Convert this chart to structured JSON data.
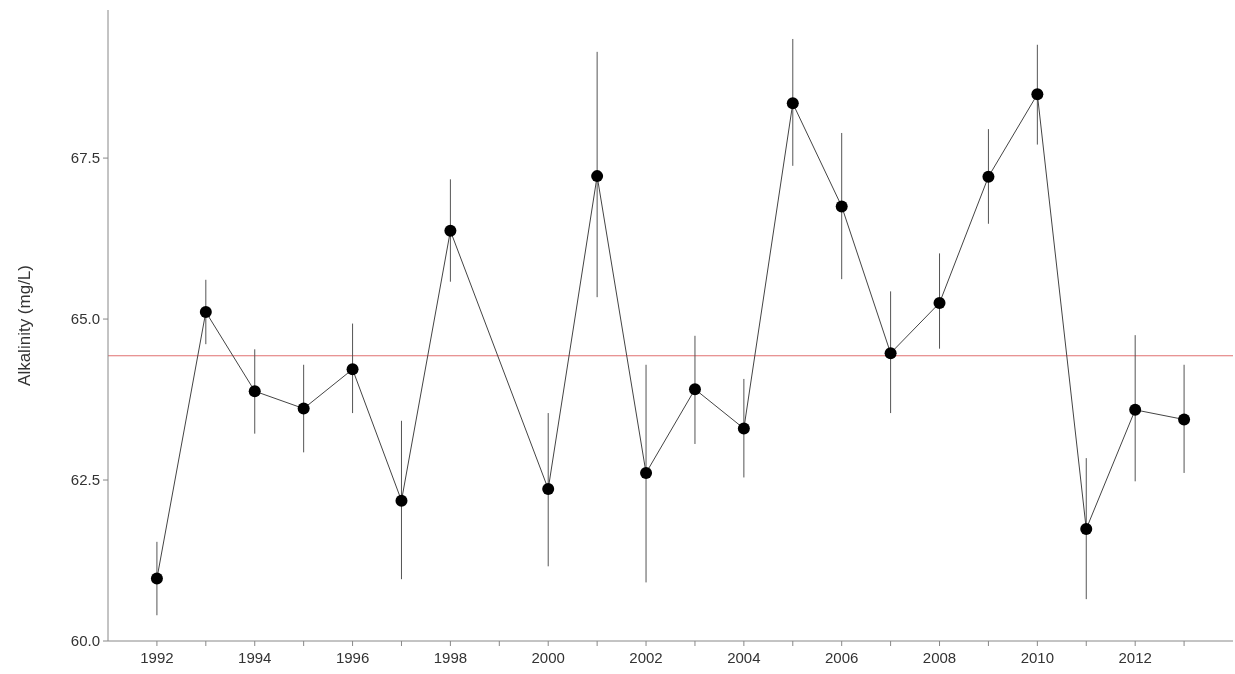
{
  "chart_data": {
    "type": "line",
    "ylabel": "Alkalinity (mg/L)",
    "x": [
      1992,
      1993,
      1994,
      1995,
      1996,
      1997,
      1998,
      2000,
      2001,
      2002,
      2003,
      2004,
      2005,
      2006,
      2007,
      2008,
      2009,
      2010,
      2011,
      2012,
      2013
    ],
    "series": [
      {
        "color": "#000000",
        "values": [
          60.97,
          65.11,
          63.88,
          63.61,
          64.22,
          62.18,
          66.37,
          62.36,
          67.22,
          62.61,
          63.91,
          63.3,
          68.35,
          66.75,
          64.47,
          65.25,
          67.21,
          68.49,
          61.74,
          63.59,
          63.44
        ],
        "errors": [
          [
            60.4,
            61.54
          ],
          [
            64.61,
            65.61
          ],
          [
            63.22,
            64.53
          ],
          [
            62.93,
            64.29
          ],
          [
            63.54,
            64.93
          ],
          [
            60.96,
            63.42
          ],
          [
            65.58,
            67.17
          ],
          [
            61.16,
            63.54
          ],
          [
            65.34,
            69.15
          ],
          [
            60.91,
            64.29
          ],
          [
            63.06,
            64.74
          ],
          [
            62.54,
            64.07
          ],
          [
            67.38,
            69.35
          ],
          [
            65.62,
            67.89
          ],
          [
            63.54,
            65.43
          ],
          [
            64.54,
            66.02
          ],
          [
            66.48,
            67.95
          ],
          [
            67.71,
            69.26
          ],
          [
            60.65,
            62.84
          ],
          [
            62.48,
            64.75
          ],
          [
            62.61,
            64.29
          ]
        ]
      }
    ],
    "xlim": [
      1991,
      2014
    ],
    "xticks": [
      1992,
      {
        "value": 1993,
        "label": null
      },
      1994,
      {
        "value": 1995,
        "label": null
      },
      1996,
      {
        "value": 1997,
        "label": null
      },
      1998,
      {
        "value": 1999,
        "label": null
      },
      2000,
      {
        "value": 2001,
        "label": null
      },
      2002,
      {
        "value": 2003,
        "label": null
      },
      2004,
      {
        "value": 2005,
        "label": null
      },
      2006,
      {
        "value": 2007,
        "label": null
      },
      2008,
      {
        "value": 2009,
        "label": null
      },
      2010,
      {
        "value": 2011,
        "label": null
      },
      2012,
      {
        "value": 2013,
        "label": null
      }
    ],
    "ylim": [
      60,
      69.8
    ],
    "yticks": [
      {
        "value": 60,
        "label": "60.0"
      },
      62.5,
      {
        "value": 65,
        "label": "65.0"
      },
      67.5
    ],
    "ref_lines": [
      {
        "axis": "y",
        "value": 64.43,
        "color": "#e07070"
      }
    ],
    "marker": "circle",
    "line_style": "solid",
    "grid": false
  }
}
